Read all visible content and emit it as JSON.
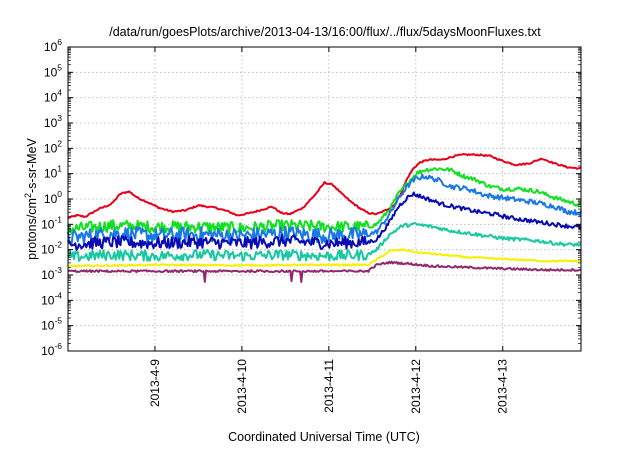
{
  "chart_data": {
    "type": "line",
    "title": "/data/run/goesPlots/archive/2013-04-13/16:00/flux/../flux/5daysMoonFluxes.txt",
    "xlabel": "Coordinated Universal Time (UTC)",
    "ylabel": {
      "prefix": "protons/cm",
      "superscript": "2",
      "suffix": "-s-sr-MeV"
    },
    "xlim": [
      0,
      5.9
    ],
    "x_unit": "days from 2013-04-08 00:00 UTC",
    "ylim_log10": [
      -6,
      6
    ],
    "yscale": "log",
    "grid": true,
    "ytick_exponents": [
      -6,
      -5,
      -4,
      -3,
      -2,
      -1,
      0,
      1,
      2,
      3,
      4,
      5,
      6
    ],
    "ytick_base": "10",
    "xticks": [
      {
        "x": 1,
        "label": "2013-4-9"
      },
      {
        "x": 2,
        "label": "2013-4-10"
      },
      {
        "x": 3,
        "label": "2013-4-11"
      },
      {
        "x": 4,
        "label": "2013-4-12"
      },
      {
        "x": 5,
        "label": "2013-4-13"
      }
    ],
    "series": [
      {
        "color": "#e8001a",
        "noise": 0.03,
        "points": [
          [
            0,
            -0.75
          ],
          [
            0.1,
            -0.65
          ],
          [
            0.2,
            -0.7
          ],
          [
            0.35,
            -0.4
          ],
          [
            0.5,
            -0.2
          ],
          [
            0.6,
            0.2
          ],
          [
            0.7,
            0.3
          ],
          [
            0.8,
            0.05
          ],
          [
            0.9,
            -0.1
          ],
          [
            1.05,
            -0.35
          ],
          [
            1.2,
            -0.5
          ],
          [
            1.35,
            -0.45
          ],
          [
            1.5,
            -0.25
          ],
          [
            1.6,
            -0.3
          ],
          [
            1.7,
            -0.35
          ],
          [
            1.85,
            -0.5
          ],
          [
            1.95,
            -0.65
          ],
          [
            2.1,
            -0.55
          ],
          [
            2.25,
            -0.4
          ],
          [
            2.35,
            -0.3
          ],
          [
            2.45,
            -0.55
          ],
          [
            2.55,
            -0.6
          ],
          [
            2.7,
            -0.35
          ],
          [
            2.85,
            0.2
          ],
          [
            2.95,
            0.65
          ],
          [
            3.05,
            0.55
          ],
          [
            3.15,
            0.2
          ],
          [
            3.25,
            -0.1
          ],
          [
            3.35,
            -0.35
          ],
          [
            3.45,
            -0.55
          ],
          [
            3.55,
            -0.6
          ],
          [
            3.65,
            -0.45
          ],
          [
            3.75,
            -0.25
          ],
          [
            3.82,
            0.15
          ],
          [
            3.9,
            0.8
          ],
          [
            3.97,
            1.2
          ],
          [
            4.05,
            1.45
          ],
          [
            4.15,
            1.55
          ],
          [
            4.3,
            1.55
          ],
          [
            4.45,
            1.7
          ],
          [
            4.55,
            1.75
          ],
          [
            4.7,
            1.75
          ],
          [
            4.85,
            1.7
          ],
          [
            5.0,
            1.5
          ],
          [
            5.15,
            1.35
          ],
          [
            5.3,
            1.4
          ],
          [
            5.45,
            1.6
          ],
          [
            5.6,
            1.4
          ],
          [
            5.75,
            1.25
          ],
          [
            5.9,
            1.2
          ]
        ]
      },
      {
        "color": "#10e020",
        "noise": 0.08,
        "points": [
          [
            0,
            -1.2
          ],
          [
            0.5,
            -1.05
          ],
          [
            1,
            -1.1
          ],
          [
            1.5,
            -1.1
          ],
          [
            2,
            -1.15
          ],
          [
            2.5,
            -1.05
          ],
          [
            3,
            -1.1
          ],
          [
            3.45,
            -1.1
          ],
          [
            3.55,
            -1.0
          ],
          [
            3.7,
            -0.4
          ],
          [
            3.8,
            0.2
          ],
          [
            3.9,
            0.6
          ],
          [
            4.0,
            1.0
          ],
          [
            4.1,
            1.15
          ],
          [
            4.25,
            1.2
          ],
          [
            4.4,
            1.15
          ],
          [
            4.55,
            0.9
          ],
          [
            4.7,
            0.75
          ],
          [
            4.85,
            0.5
          ],
          [
            5.0,
            0.4
          ],
          [
            5.2,
            0.4
          ],
          [
            5.4,
            0.3
          ],
          [
            5.6,
            0.05
          ],
          [
            5.75,
            -0.1
          ],
          [
            5.9,
            -0.25
          ]
        ]
      },
      {
        "color": "#1a78e6",
        "noise": 0.1,
        "points": [
          [
            0,
            -1.55
          ],
          [
            0.5,
            -1.35
          ],
          [
            1,
            -1.45
          ],
          [
            1.5,
            -1.4
          ],
          [
            2,
            -1.45
          ],
          [
            2.5,
            -1.35
          ],
          [
            3,
            -1.45
          ],
          [
            3.45,
            -1.4
          ],
          [
            3.55,
            -1.3
          ],
          [
            3.7,
            -0.6
          ],
          [
            3.8,
            0.0
          ],
          [
            3.9,
            0.5
          ],
          [
            4.0,
            0.8
          ],
          [
            4.1,
            0.9
          ],
          [
            4.25,
            0.75
          ],
          [
            4.4,
            0.5
          ],
          [
            4.6,
            0.4
          ],
          [
            4.8,
            0.15
          ],
          [
            5.0,
            0.05
          ],
          [
            5.2,
            -0.05
          ],
          [
            5.4,
            -0.15
          ],
          [
            5.6,
            -0.3
          ],
          [
            5.75,
            -0.5
          ],
          [
            5.9,
            -0.55
          ]
        ]
      },
      {
        "color": "#0a0ab4",
        "noise": 0.08,
        "points": [
          [
            0,
            -1.8
          ],
          [
            0.5,
            -1.7
          ],
          [
            1,
            -1.75
          ],
          [
            1.5,
            -1.7
          ],
          [
            2,
            -1.75
          ],
          [
            2.5,
            -1.65
          ],
          [
            3,
            -1.75
          ],
          [
            3.45,
            -1.7
          ],
          [
            3.55,
            -1.6
          ],
          [
            3.7,
            -0.9
          ],
          [
            3.8,
            -0.3
          ],
          [
            3.9,
            0.05
          ],
          [
            3.97,
            0.2
          ],
          [
            4.1,
            0.05
          ],
          [
            4.3,
            -0.2
          ],
          [
            4.5,
            -0.35
          ],
          [
            4.7,
            -0.5
          ],
          [
            4.9,
            -0.6
          ],
          [
            5.1,
            -0.75
          ],
          [
            5.3,
            -0.85
          ],
          [
            5.5,
            -0.95
          ],
          [
            5.7,
            -1.05
          ],
          [
            5.9,
            -1.12
          ]
        ]
      },
      {
        "color": "#18c8a0",
        "noise": 0.07,
        "points": [
          [
            0,
            -2.3
          ],
          [
            0.5,
            -2.2
          ],
          [
            1,
            -2.25
          ],
          [
            1.5,
            -2.2
          ],
          [
            2,
            -2.25
          ],
          [
            2.5,
            -2.2
          ],
          [
            3,
            -2.25
          ],
          [
            3.45,
            -2.2
          ],
          [
            3.55,
            -2.0
          ],
          [
            3.7,
            -1.4
          ],
          [
            3.85,
            -1.05
          ],
          [
            4.0,
            -1.0
          ],
          [
            4.2,
            -1.1
          ],
          [
            4.4,
            -1.25
          ],
          [
            4.6,
            -1.35
          ],
          [
            4.8,
            -1.45
          ],
          [
            5.0,
            -1.55
          ],
          [
            5.2,
            -1.6
          ],
          [
            5.4,
            -1.65
          ],
          [
            5.6,
            -1.75
          ],
          [
            5.75,
            -1.8
          ],
          [
            5.9,
            -1.8
          ]
        ]
      },
      {
        "color": "#f5f000",
        "noise": 0.03,
        "points": [
          [
            0,
            -2.65
          ],
          [
            1,
            -2.6
          ],
          [
            2,
            -2.62
          ],
          [
            3,
            -2.6
          ],
          [
            3.45,
            -2.6
          ],
          [
            3.55,
            -2.4
          ],
          [
            3.7,
            -2.05
          ],
          [
            3.85,
            -2.0
          ],
          [
            4.0,
            -2.1
          ],
          [
            4.3,
            -2.2
          ],
          [
            4.6,
            -2.3
          ],
          [
            4.9,
            -2.35
          ],
          [
            5.2,
            -2.4
          ],
          [
            5.5,
            -2.45
          ],
          [
            5.9,
            -2.45
          ]
        ]
      },
      {
        "color": "#902a6c",
        "noise": 0.04,
        "points": [
          [
            0,
            -2.85
          ],
          [
            1,
            -2.85
          ],
          [
            2,
            -2.85
          ],
          [
            3,
            -2.85
          ],
          [
            3.45,
            -2.85
          ],
          [
            3.55,
            -2.6
          ],
          [
            3.7,
            -2.5
          ],
          [
            3.9,
            -2.55
          ],
          [
            4.2,
            -2.65
          ],
          [
            4.6,
            -2.7
          ],
          [
            5.0,
            -2.75
          ],
          [
            5.5,
            -2.8
          ],
          [
            5.9,
            -2.8
          ]
        ]
      }
    ]
  }
}
